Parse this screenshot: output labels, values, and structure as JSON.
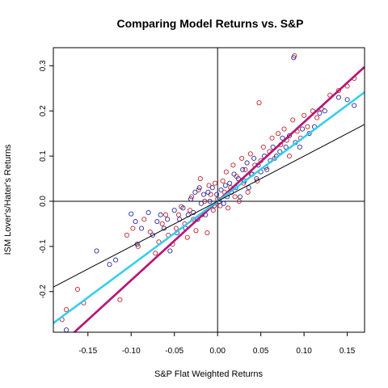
{
  "chart_data": {
    "type": "scatter",
    "title": "Comparing Model Returns vs. S&P",
    "xlabel": "S&P Flat Weighted Returns",
    "ylabel": "ISM Lover's/Hater's Returns",
    "xlim": [
      -0.19,
      0.17
    ],
    "ylim": [
      -0.29,
      0.34
    ],
    "x_ticks": [
      -0.15,
      -0.1,
      -0.05,
      0.0,
      0.05,
      0.1,
      0.15
    ],
    "x_tick_labels": [
      "-0.15",
      "-0.10",
      "-0.05",
      "0.00",
      "0.05",
      "0.10",
      "0.15"
    ],
    "y_ticks": [
      -0.2,
      -0.1,
      0.0,
      0.1,
      0.2,
      0.3
    ],
    "y_tick_labels": [
      "-0.2",
      "-0.1",
      "0.0",
      "0.1",
      "0.2",
      "0.3"
    ],
    "grid": false,
    "reference_lines": {
      "horizontal_y": 0.0,
      "vertical_x": 0.0
    },
    "series": [
      {
        "color": "#c0272d",
        "marker": "open-circle",
        "points": [
          [
            -0.18,
            -0.262
          ],
          [
            -0.175,
            -0.24
          ],
          [
            -0.162,
            -0.195
          ],
          [
            -0.155,
            -0.225
          ],
          [
            -0.113,
            -0.218
          ],
          [
            -0.105,
            -0.075
          ],
          [
            -0.098,
            -0.06
          ],
          [
            -0.092,
            -0.1
          ],
          [
            -0.085,
            -0.04
          ],
          [
            -0.078,
            -0.068
          ],
          [
            -0.072,
            -0.115
          ],
          [
            -0.068,
            -0.09
          ],
          [
            -0.064,
            -0.05
          ],
          [
            -0.06,
            -0.03
          ],
          [
            -0.057,
            -0.075
          ],
          [
            -0.052,
            -0.095
          ],
          [
            -0.048,
            -0.06
          ],
          [
            -0.045,
            -0.03
          ],
          [
            -0.042,
            -0.012
          ],
          [
            -0.038,
            -0.05
          ],
          [
            -0.035,
            -0.08
          ],
          [
            -0.032,
            -0.02
          ],
          [
            -0.03,
            0.01
          ],
          [
            -0.028,
            -0.04
          ],
          [
            -0.025,
            -0.065
          ],
          [
            -0.022,
            0.025
          ],
          [
            -0.02,
            0.05
          ],
          [
            -0.018,
            -0.03
          ],
          [
            -0.015,
            0.0
          ],
          [
            -0.012,
            -0.07
          ],
          [
            -0.01,
            0.035
          ],
          [
            -0.008,
            0.015
          ],
          [
            -0.005,
            -0.02
          ],
          [
            -0.003,
            0.04
          ],
          [
            0.0,
            0.005
          ],
          [
            0.003,
            -0.01
          ],
          [
            0.006,
            0.045
          ],
          [
            0.008,
            0.02
          ],
          [
            0.01,
            0.065
          ],
          [
            0.012,
            -0.015
          ],
          [
            0.015,
            0.03
          ],
          [
            0.018,
            0.08
          ],
          [
            0.02,
            0.01
          ],
          [
            0.022,
            0.055
          ],
          [
            0.025,
            0.0
          ],
          [
            0.028,
            0.095
          ],
          [
            0.03,
            0.04
          ],
          [
            0.032,
            0.07
          ],
          [
            0.035,
            0.02
          ],
          [
            0.038,
            0.105
          ],
          [
            0.04,
            0.06
          ],
          [
            0.043,
            0.08
          ],
          [
            0.046,
            0.045
          ],
          [
            0.048,
            0.218
          ],
          [
            0.05,
            0.09
          ],
          [
            0.053,
            0.12
          ],
          [
            0.056,
            0.075
          ],
          [
            0.06,
            0.11
          ],
          [
            0.063,
            0.14
          ],
          [
            0.066,
            0.095
          ],
          [
            0.07,
            0.15
          ],
          [
            0.073,
            0.125
          ],
          [
            0.077,
            0.16
          ],
          [
            0.08,
            0.135
          ],
          [
            0.083,
            0.1
          ],
          [
            0.087,
            0.18
          ],
          [
            0.089,
            0.322
          ],
          [
            0.092,
            0.155
          ],
          [
            0.096,
            0.14
          ],
          [
            0.1,
            0.19
          ],
          [
            0.104,
            0.165
          ],
          [
            0.11,
            0.2
          ],
          [
            0.115,
            0.185
          ],
          [
            0.12,
            0.205
          ],
          [
            0.13,
            0.235
          ],
          [
            0.14,
            0.245
          ],
          [
            0.15,
            0.255
          ],
          [
            0.158,
            0.272
          ]
        ]
      },
      {
        "color": "#2b2b9c",
        "marker": "open-circle",
        "points": [
          [
            -0.175,
            -0.285
          ],
          [
            -0.14,
            -0.11
          ],
          [
            -0.125,
            -0.14
          ],
          [
            -0.118,
            -0.13
          ],
          [
            -0.1,
            -0.028
          ],
          [
            -0.095,
            -0.045
          ],
          [
            -0.093,
            -0.095
          ],
          [
            -0.088,
            -0.06
          ],
          [
            -0.08,
            -0.025
          ],
          [
            -0.075,
            -0.075
          ],
          [
            -0.07,
            -0.045
          ],
          [
            -0.066,
            -0.03
          ],
          [
            -0.062,
            -0.06
          ],
          [
            -0.058,
            -0.04
          ],
          [
            -0.055,
            -0.11
          ],
          [
            -0.05,
            -0.02
          ],
          [
            -0.047,
            -0.07
          ],
          [
            -0.044,
            -0.04
          ],
          [
            -0.04,
            -0.015
          ],
          [
            -0.037,
            -0.06
          ],
          [
            -0.034,
            -0.03
          ],
          [
            -0.031,
            0.005
          ],
          [
            -0.028,
            -0.025
          ],
          [
            -0.026,
            0.02
          ],
          [
            -0.023,
            -0.04
          ],
          [
            -0.021,
            0.03
          ],
          [
            -0.019,
            -0.005
          ],
          [
            -0.016,
            0.015
          ],
          [
            -0.014,
            -0.03
          ],
          [
            -0.011,
            0.02
          ],
          [
            -0.009,
            0.0
          ],
          [
            -0.006,
            0.03
          ],
          [
            -0.004,
            -0.01
          ],
          [
            -0.001,
            0.015
          ],
          [
            0.002,
            0.0
          ],
          [
            0.004,
            0.025
          ],
          [
            0.007,
            -0.005
          ],
          [
            0.009,
            0.035
          ],
          [
            0.011,
            0.01
          ],
          [
            0.014,
            0.04
          ],
          [
            0.016,
            0.02
          ],
          [
            0.019,
            0.06
          ],
          [
            0.021,
            0.03
          ],
          [
            0.024,
            0.05
          ],
          [
            0.026,
            0.01
          ],
          [
            0.029,
            0.07
          ],
          [
            0.031,
            0.045
          ],
          [
            0.034,
            0.085
          ],
          [
            0.036,
            0.03
          ],
          [
            0.039,
            0.06
          ],
          [
            0.042,
            0.095
          ],
          [
            0.045,
            0.05
          ],
          [
            0.047,
            0.08
          ],
          [
            0.05,
            0.065
          ],
          [
            0.054,
            0.1
          ],
          [
            0.057,
            0.07
          ],
          [
            0.061,
            0.09
          ],
          [
            0.064,
            0.12
          ],
          [
            0.068,
            0.1
          ],
          [
            0.072,
            0.11
          ],
          [
            0.075,
            0.14
          ],
          [
            0.079,
            0.12
          ],
          [
            0.083,
            0.145
          ],
          [
            0.088,
            0.318
          ],
          [
            0.09,
            0.13
          ],
          [
            0.095,
            0.12
          ],
          [
            0.098,
            0.16
          ],
          [
            0.106,
            0.15
          ],
          [
            0.112,
            0.165
          ],
          [
            0.118,
            0.195
          ],
          [
            0.124,
            0.2
          ],
          [
            0.14,
            0.23
          ],
          [
            0.15,
            0.225
          ],
          [
            0.158,
            0.212
          ]
        ]
      }
    ],
    "fit_lines": [
      {
        "color": "#cc0000",
        "width": 2.5,
        "intercept": 0.0,
        "slope": 1.75
      },
      {
        "color": "#b5167a",
        "width": 2.5,
        "intercept": 0.0,
        "slope": 1.75
      },
      {
        "color": "#33ccee",
        "width": 2.5,
        "intercept": 0.0,
        "slope": 1.42
      },
      {
        "color": "#000000",
        "width": 1,
        "intercept": 0.0,
        "slope": 1.0
      }
    ]
  }
}
